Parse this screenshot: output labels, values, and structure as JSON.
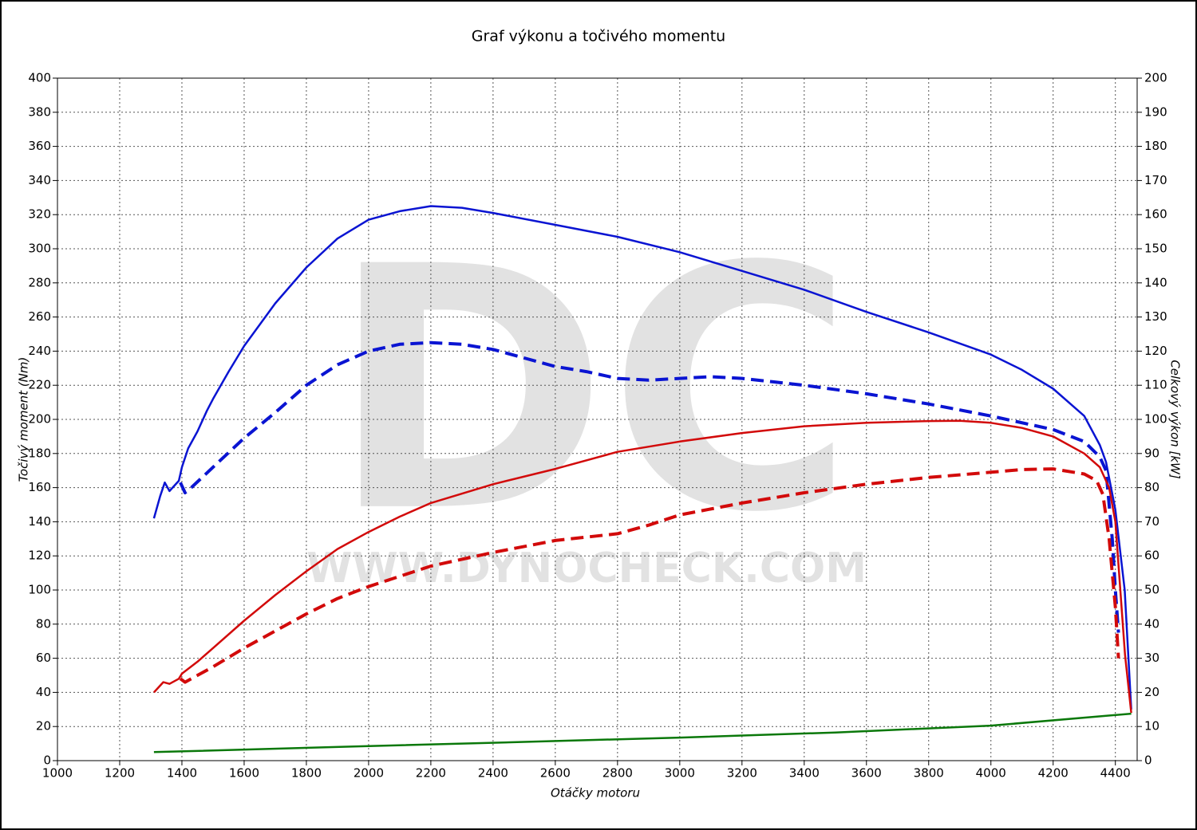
{
  "chart_data": {
    "type": "line",
    "title": "Graf výkonu a točivého momentu",
    "xlabel": "Otáčky motoru",
    "ylabel": "Točivý moment (Nm)",
    "y2label": "Celkový výkon [kW]",
    "watermark": {
      "logo": "DC",
      "url": "WWW.DYNOCHECK.COM"
    },
    "xlim": [
      1000,
      4470
    ],
    "xticks": [
      1000,
      1200,
      1400,
      1600,
      1800,
      2000,
      2200,
      2400,
      2600,
      2800,
      3000,
      3200,
      3400,
      3600,
      3800,
      4000,
      4200,
      4400
    ],
    "ylim": [
      0,
      400
    ],
    "yticks": [
      0,
      20,
      40,
      60,
      80,
      100,
      120,
      140,
      160,
      180,
      200,
      220,
      240,
      260,
      280,
      300,
      320,
      340,
      360,
      380,
      400
    ],
    "y2lim": [
      0,
      200
    ],
    "y2ticks": [
      0,
      10,
      20,
      30,
      40,
      50,
      60,
      70,
      80,
      90,
      100,
      110,
      120,
      130,
      140,
      150,
      160,
      170,
      180,
      190,
      200
    ],
    "grid": true,
    "series": [
      {
        "color": "#0a14d2",
        "style": "solid",
        "axis": "y",
        "x": [
          1310,
          1330,
          1345,
          1360,
          1390,
          1400,
          1420,
          1450,
          1480,
          1500,
          1550,
          1600,
          1700,
          1800,
          1900,
          2000,
          2100,
          2200,
          2300,
          2400,
          2600,
          2800,
          3000,
          3200,
          3400,
          3600,
          3800,
          4000,
          4100,
          4200,
          4300,
          4350,
          4370,
          4400,
          4430,
          4451
        ],
        "values": [
          142,
          155,
          163,
          158,
          164,
          172,
          183,
          193,
          205,
          212,
          228,
          243,
          268,
          289,
          306,
          317,
          322,
          325,
          324,
          321,
          314,
          307,
          298,
          287,
          276,
          263,
          251,
          238,
          229,
          218,
          202,
          185,
          175,
          147,
          100,
          30
        ]
      },
      {
        "color": "#0a14d2",
        "style": "dashed",
        "axis": "y",
        "x": [
          1395,
          1410,
          1430,
          1500,
          1600,
          1700,
          1800,
          1900,
          2000,
          2100,
          2200,
          2300,
          2400,
          2500,
          2600,
          2700,
          2800,
          2900,
          3000,
          3100,
          3200,
          3300,
          3400,
          3600,
          3800,
          4000,
          4200,
          4300,
          4350,
          4370,
          4390,
          4400,
          4410
        ],
        "values": [
          163,
          157,
          160,
          172,
          189,
          204,
          220,
          232,
          240,
          244,
          245,
          244,
          241,
          236,
          231,
          228,
          224,
          223,
          224,
          225,
          224,
          222,
          220,
          215,
          209,
          202,
          194,
          187,
          178,
          170,
          130,
          100,
          75
        ]
      },
      {
        "color": "#d20a0a",
        "style": "solid",
        "axis": "y2",
        "x": [
          1310,
          1340,
          1360,
          1390,
          1400,
          1450,
          1500,
          1600,
          1700,
          1800,
          1900,
          2000,
          2100,
          2200,
          2400,
          2600,
          2800,
          3000,
          3200,
          3400,
          3600,
          3800,
          3900,
          4000,
          4100,
          4200,
          4300,
          4350,
          4380,
          4400,
          4431,
          4451
        ],
        "values": [
          20,
          23,
          22.5,
          24,
          25.5,
          29,
          33,
          41,
          48.5,
          55.5,
          62,
          67,
          71.5,
          75.5,
          81,
          85.5,
          90.5,
          93.5,
          96,
          98,
          99,
          99.5,
          99.6,
          99,
          97.5,
          95,
          90,
          86,
          80,
          70,
          31,
          14
        ]
      },
      {
        "color": "#d20a0a",
        "style": "dashed",
        "axis": "y2",
        "x": [
          1395,
          1410,
          1450,
          1500,
          1600,
          1700,
          1800,
          1900,
          2000,
          2200,
          2400,
          2600,
          2800,
          2900,
          3000,
          3200,
          3400,
          3600,
          3800,
          4000,
          4100,
          4200,
          4300,
          4340,
          4360,
          4380,
          4400,
          4410
        ],
        "values": [
          24,
          23,
          25,
          27.5,
          33,
          38,
          43,
          47.5,
          51,
          57,
          61,
          64.5,
          66.5,
          69,
          72,
          75.5,
          78.5,
          81,
          83,
          84.5,
          85.3,
          85.5,
          84,
          82,
          78,
          65,
          45,
          30
        ]
      },
      {
        "color": "#0a780a",
        "style": "solid",
        "axis": "y",
        "x": [
          1310,
          2000,
          2500,
          3000,
          3500,
          4000,
          4451
        ],
        "values": [
          5,
          8.5,
          11,
          13.5,
          16.5,
          20.5,
          27.5
        ]
      }
    ]
  }
}
